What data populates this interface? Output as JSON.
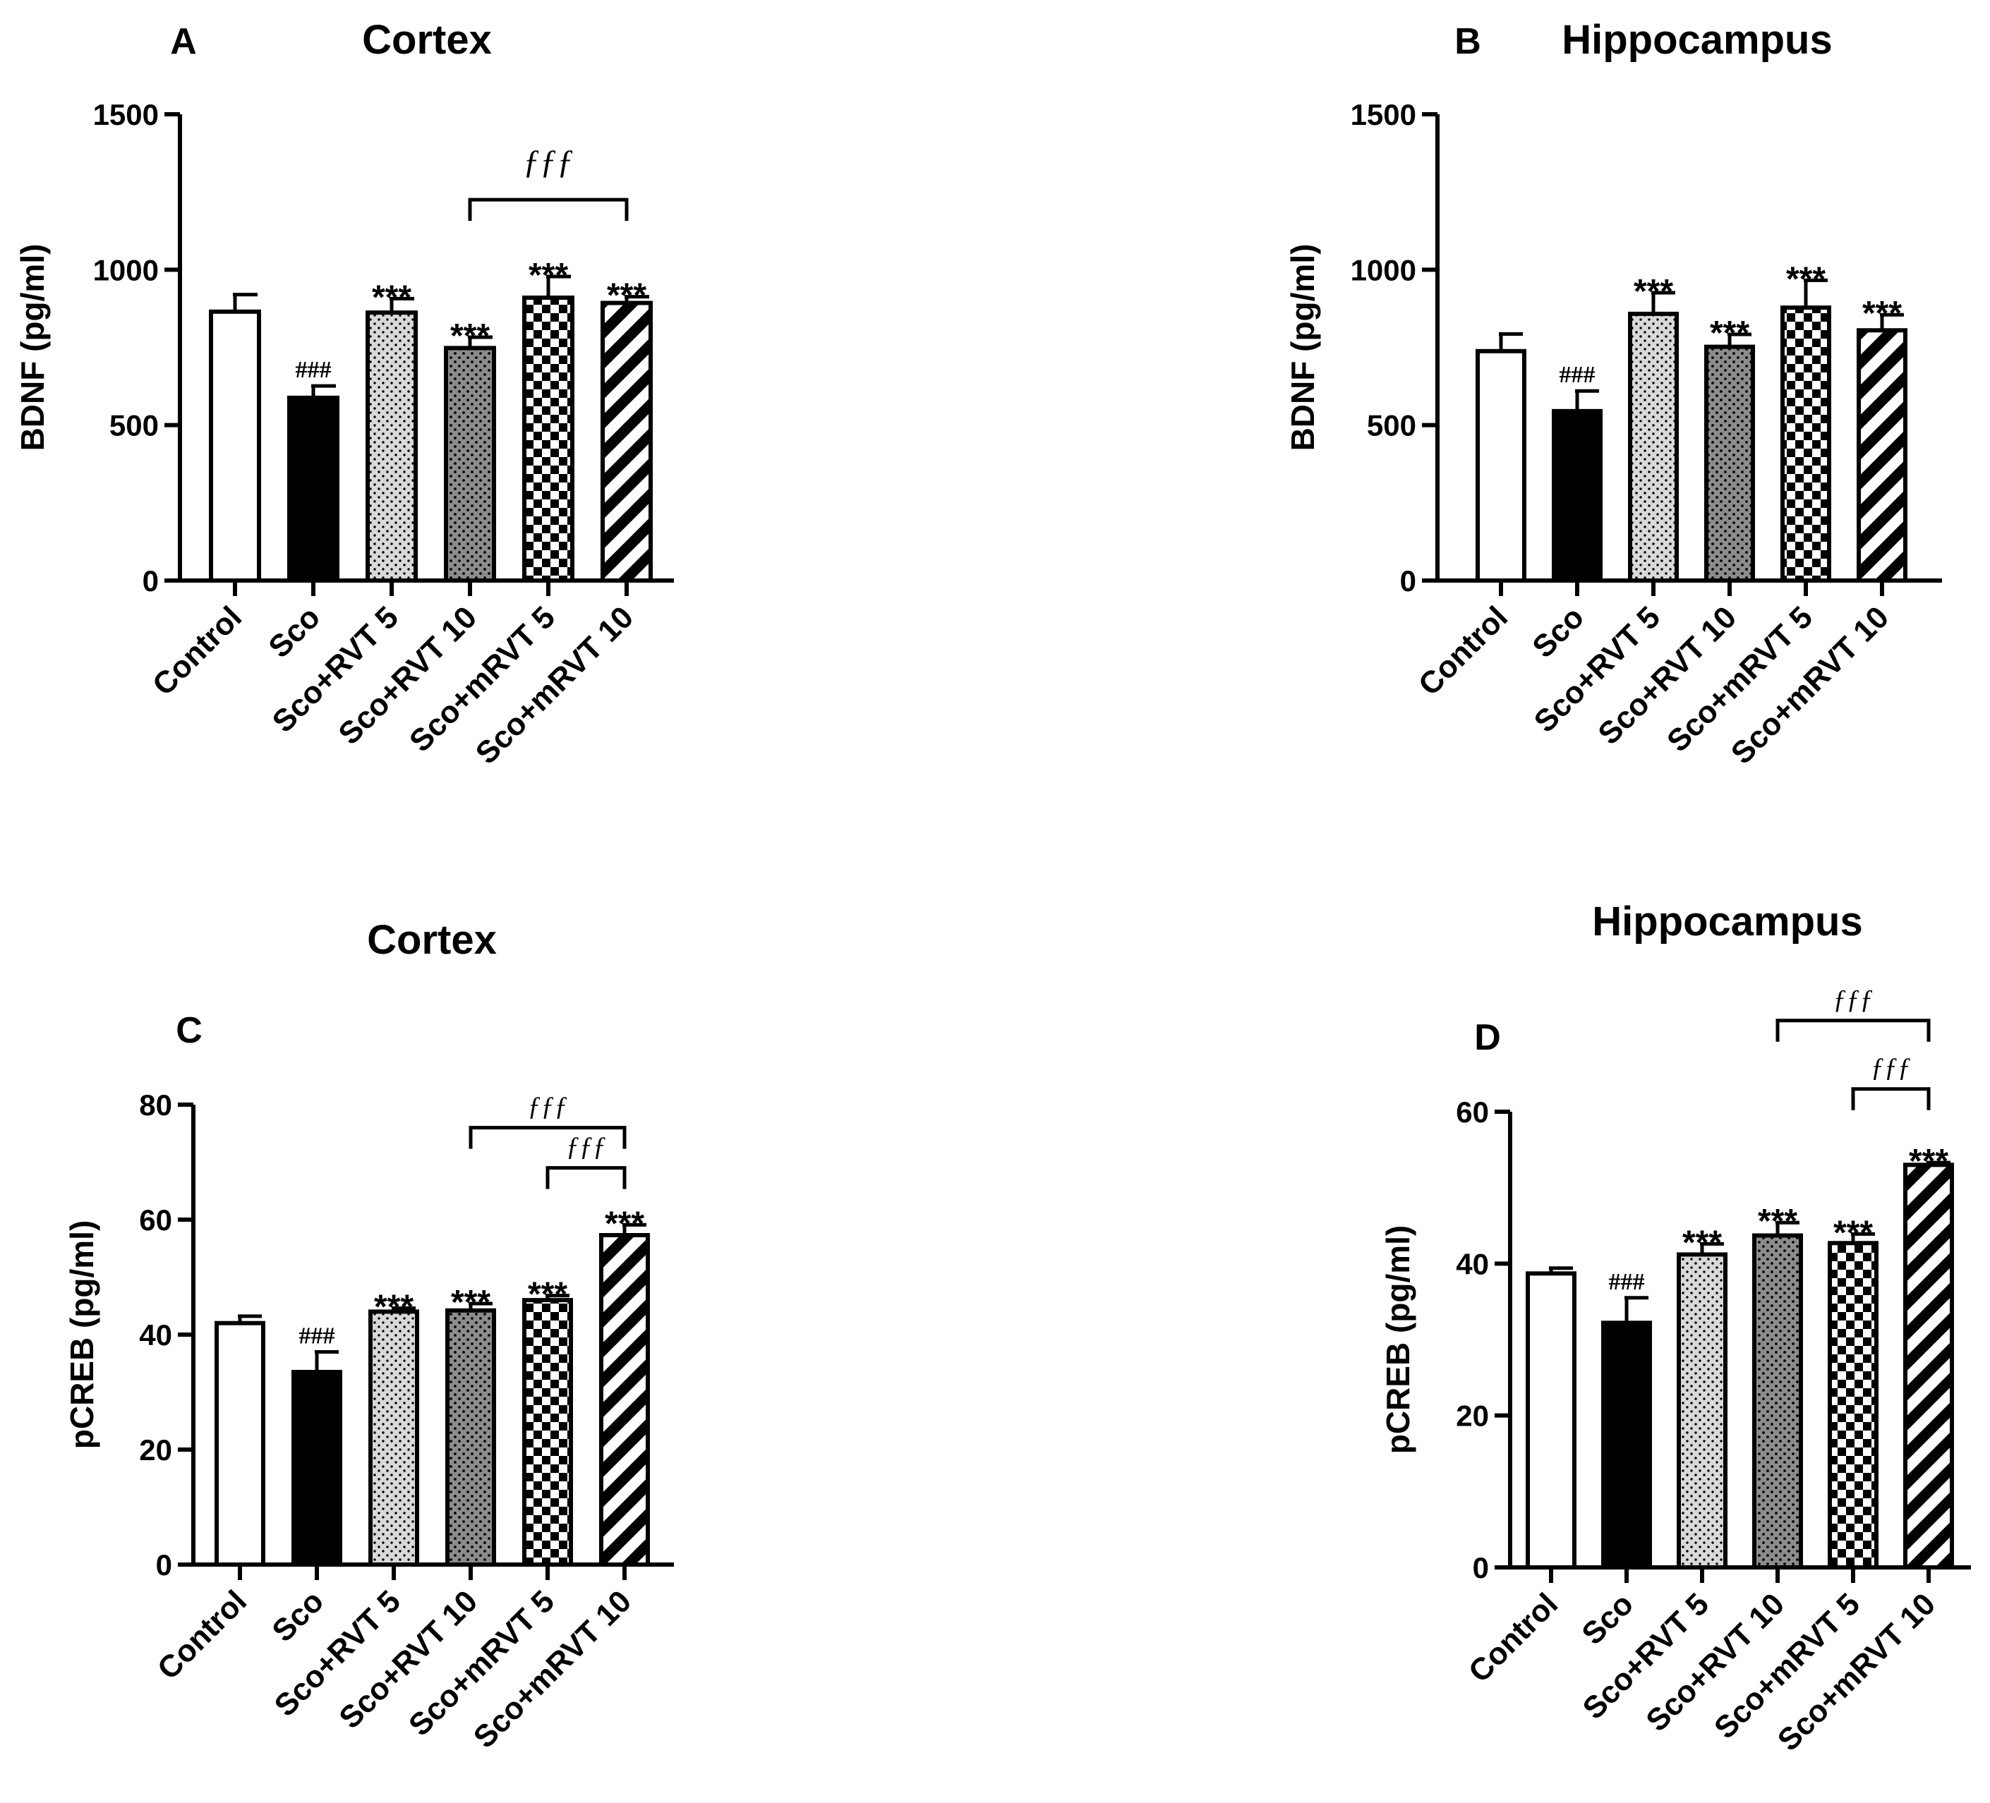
{
  "colors": {
    "ink": "#000000",
    "bar_light": "#d9d9d9",
    "bar_mid": "#8c8c8c",
    "background": "#ffffff"
  },
  "chart_data": [
    {
      "panel": "A",
      "type": "bar",
      "title": "Cortex",
      "ylabel": "BDNF (pg/ml)",
      "ylim": [
        0,
        1500
      ],
      "yticks": [
        0,
        500,
        1000,
        1500
      ],
      "categories": [
        "Control",
        "Sco",
        "Sco+RVT 5",
        "Sco+RVT 10",
        "Sco+mRVT 5",
        "Sco+mRVT 10"
      ],
      "values": [
        865,
        588,
        862,
        748,
        910,
        893
      ],
      "errors": [
        55,
        38,
        45,
        35,
        68,
        20
      ],
      "patterns": [
        "empty",
        "solid",
        "dots-light",
        "dots-dark",
        "checker",
        "diagonal"
      ],
      "annotations": [
        "",
        "###",
        "***",
        "***",
        "***",
        "***"
      ],
      "brackets": [
        {
          "from": 3,
          "to": 5,
          "label": "ƒƒƒ",
          "y": 1225
        }
      ]
    },
    {
      "panel": "B",
      "type": "bar",
      "title": "Hippocampus",
      "ylabel": "BDNF (pg/ml)",
      "ylim": [
        0,
        1500
      ],
      "yticks": [
        0,
        500,
        1000,
        1500
      ],
      "categories": [
        "Control",
        "Sco",
        "Sco+RVT 5",
        "Sco+RVT 10",
        "Sco+mRVT 5",
        "Sco+mRVT 10"
      ],
      "values": [
        738,
        545,
        858,
        752,
        878,
        805
      ],
      "errors": [
        55,
        65,
        68,
        40,
        88,
        50
      ],
      "patterns": [
        "empty",
        "solid",
        "dots-light",
        "dots-dark",
        "checker",
        "diagonal"
      ],
      "annotations": [
        "",
        "###",
        "***",
        "***",
        "***",
        "***"
      ],
      "brackets": []
    },
    {
      "panel": "C",
      "type": "bar",
      "title": "Cortex",
      "ylabel": "pCREB (pg/ml)",
      "ylim": [
        0,
        80
      ],
      "yticks": [
        0,
        20,
        40,
        60,
        80
      ],
      "categories": [
        "Control",
        "Sco",
        "Sco+RVT 5",
        "Sco+RVT 10",
        "Sco+mRVT 5",
        "Sco+mRVT 10"
      ],
      "values": [
        42,
        33.5,
        44,
        44.2,
        46,
        57.3
      ],
      "errors": [
        1.2,
        3.5,
        0.6,
        1.2,
        0.8,
        1.8
      ],
      "patterns": [
        "empty",
        "solid",
        "dots-light",
        "dots-dark",
        "checker",
        "diagonal"
      ],
      "annotations": [
        "",
        "###",
        "***",
        "***",
        "***",
        "***"
      ],
      "brackets": [
        {
          "from": 3,
          "to": 5,
          "label": "ƒƒƒ",
          "y": 76
        },
        {
          "from": 4,
          "to": 5,
          "label": "ƒƒƒ",
          "y": 69
        }
      ]
    },
    {
      "panel": "D",
      "type": "bar",
      "title": "Hippocampus",
      "ylabel": "pCREB (pg/ml)",
      "ylim": [
        0,
        60
      ],
      "yticks": [
        0,
        20,
        40,
        60
      ],
      "categories": [
        "Control",
        "Sco",
        "Sco+RVT 5",
        "Sco+RVT 10",
        "Sco+mRVT 5",
        "Sco+mRVT 10"
      ],
      "values": [
        38.7,
        32.2,
        41.2,
        43.7,
        42.7,
        53
      ],
      "errors": [
        0.7,
        3.3,
        1.4,
        1.7,
        1.2,
        0.3
      ],
      "patterns": [
        "empty",
        "solid",
        "dots-light",
        "dots-dark",
        "checker",
        "diagonal"
      ],
      "annotations": [
        "",
        "###",
        "***",
        "***",
        "***",
        "***"
      ],
      "brackets": [
        {
          "from": 3,
          "to": 5,
          "label": "ƒƒƒ",
          "y": 72
        },
        {
          "from": 4,
          "to": 5,
          "label": "ƒƒƒ",
          "y": 63
        }
      ]
    }
  ]
}
